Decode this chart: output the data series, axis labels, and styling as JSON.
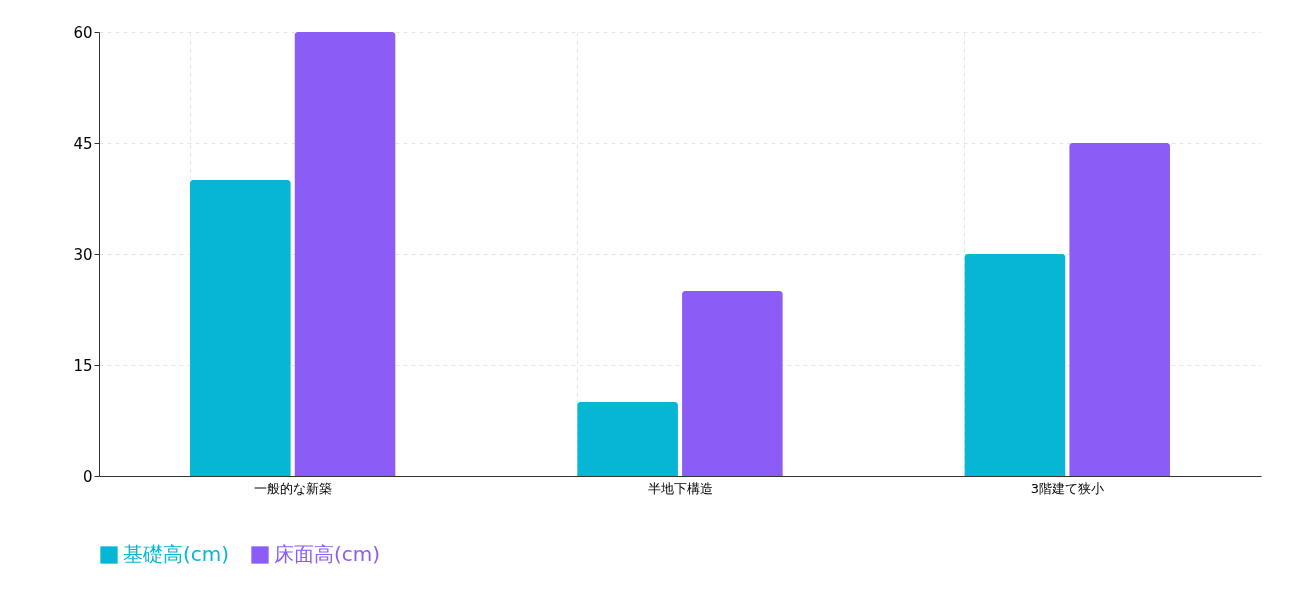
{
  "chart_data": {
    "type": "bar",
    "categories": [
      "一般的な新築",
      "半地下構造",
      "3階建て狭小"
    ],
    "series": [
      {
        "name": "基礎高(cm)",
        "color": "#06b6d4",
        "values": [
          40,
          10,
          30
        ]
      },
      {
        "name": "床面高(cm)",
        "color": "#8b5cf6",
        "values": [
          60,
          25,
          45
        ]
      }
    ],
    "ylim": [
      0,
      60
    ],
    "yticks": [
      0,
      15,
      30,
      45,
      60
    ],
    "grid": true,
    "legend": "bottom"
  }
}
